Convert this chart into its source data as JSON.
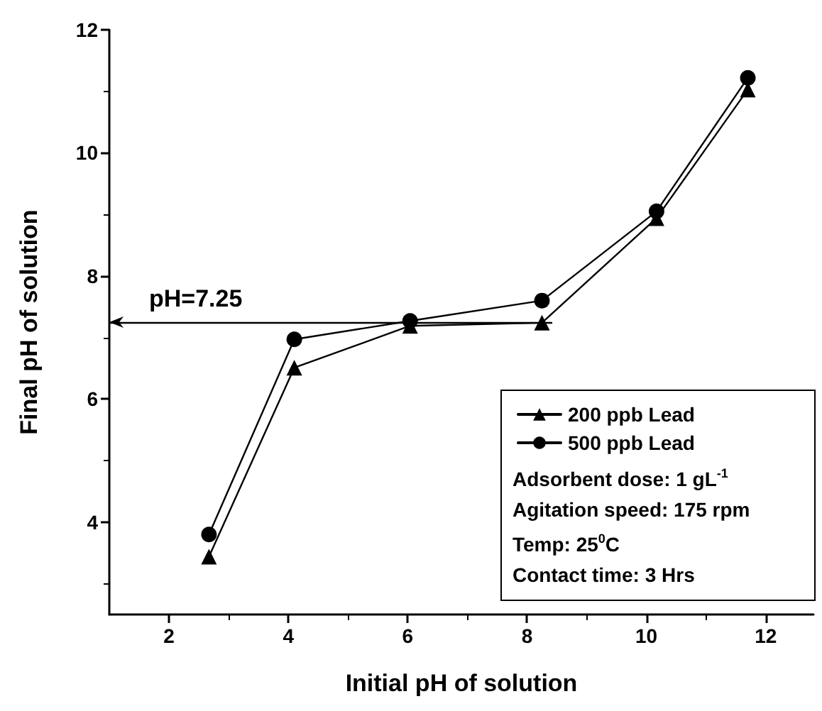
{
  "chart_data": {
    "type": "line",
    "xlabel": "Initial pH of solution",
    "ylabel": "Final pH of solution",
    "xlim": [
      1,
      12.8
    ],
    "xticks": [
      2,
      4,
      6,
      8,
      10,
      12
    ],
    "ylim": [
      2.5,
      12
    ],
    "yticks": [
      4,
      6,
      8,
      10,
      12
    ],
    "grid": false,
    "ref_lines": [
      {
        "axis": "y",
        "value": 7.25,
        "label": "pH=7.25",
        "color": "#000000"
      }
    ],
    "legend": "bottom right",
    "line_style": "solid",
    "series": [
      {
        "name": "200 ppb Lead",
        "color": "#000000",
        "marker": "triangle",
        "x": [
          2.67,
          4.1,
          6.04,
          8.25,
          10.17,
          11.7
        ],
        "values": [
          3.44,
          6.51,
          7.19,
          7.24,
          8.94,
          11.03
        ]
      },
      {
        "name": "500 ppb Lead",
        "color": "#000000",
        "marker": "circle",
        "x": [
          2.67,
          4.1,
          6.04,
          8.25,
          10.17,
          11.7
        ],
        "values": [
          3.8,
          6.97,
          7.27,
          7.6,
          9.05,
          11.22
        ]
      }
    ],
    "annotations": [
      "Adsorbent dose: 1 gL$^{-1}$",
      "Agitation speed: 175 rpm",
      "Temp: 25$^{0}$C",
      "Contact time: 3 Hrs"
    ]
  }
}
